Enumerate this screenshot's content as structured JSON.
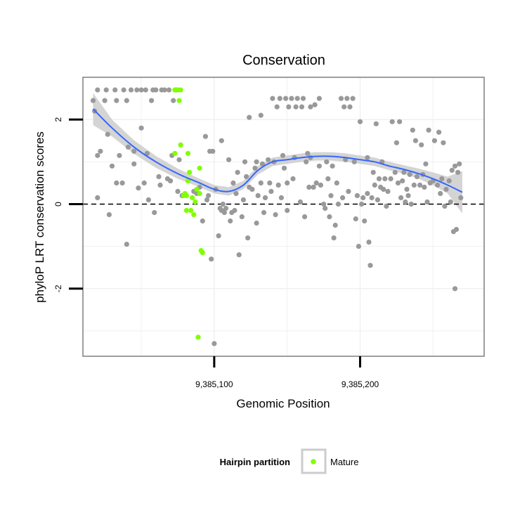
{
  "chart_data": {
    "type": "scatter",
    "title": "Conservation",
    "xlabel": "Genomic Position",
    "ylabel": "phyloP LRT conservation scores",
    "xlim": [
      9385010,
      9385285
    ],
    "ylim": [
      -3.6,
      3.0
    ],
    "x_ticks": [
      9385100,
      9385200
    ],
    "x_tick_labels": [
      "9,385,100",
      "9,385,200"
    ],
    "y_ticks": [
      -2,
      0,
      2
    ],
    "y_tick_labels": [
      "-2",
      "0",
      "2"
    ],
    "grid": true,
    "reference_line": {
      "y": 0,
      "style": "dashed"
    },
    "legend": {
      "title": "Hairpin partition",
      "entries": [
        "Mature"
      ],
      "position": "bottom"
    },
    "colors": {
      "other": "#999999",
      "Mature": "#7fff00",
      "smooth": "#3366ff",
      "band": "#cccccc"
    },
    "series": [
      {
        "group": "other",
        "points": [
          [
            9385017,
            2.45
          ],
          [
            9385020,
            2.7
          ],
          [
            9385018,
            2.2
          ],
          [
            9385020,
            1.15
          ],
          [
            9385022,
            1.25
          ],
          [
            9385020,
            0.15
          ],
          [
            9385025,
            2.45
          ],
          [
            9385026,
            2.7
          ],
          [
            9385027,
            1.65
          ],
          [
            9385028,
            -0.25
          ],
          [
            9385030,
            0.9
          ],
          [
            9385032,
            2.7
          ],
          [
            9385033,
            2.45
          ],
          [
            9385035,
            1.15
          ],
          [
            9385033,
            0.5
          ],
          [
            9385037,
            0.5
          ],
          [
            9385038,
            2.7
          ],
          [
            9385040,
            2.45
          ],
          [
            9385040,
            -0.95
          ],
          [
            9385041,
            1.35
          ],
          [
            9385043,
            2.7
          ],
          [
            9385045,
            1.25
          ],
          [
            9385045,
            0.95
          ],
          [
            9385047,
            2.7
          ],
          [
            9385048,
            0.38
          ],
          [
            9385050,
            1.8
          ],
          [
            9385050,
            2.7
          ],
          [
            9385052,
            0.5
          ],
          [
            9385053,
            2.7
          ],
          [
            9385054,
            1.2
          ],
          [
            9385055,
            0.1
          ],
          [
            9385057,
            2.45
          ],
          [
            9385058,
            2.7
          ],
          [
            9385059,
            -0.2
          ],
          [
            9385060,
            2.7
          ],
          [
            9385062,
            0.65
          ],
          [
            9385063,
            0.45
          ],
          [
            9385064,
            2.7
          ],
          [
            9385066,
            2.7
          ],
          [
            9385068,
            0.6
          ],
          [
            9385069,
            2.7
          ],
          [
            9385070,
            0.55
          ],
          [
            9385071,
            1.15
          ],
          [
            9385072,
            2.45
          ],
          [
            9385074,
            2.7
          ],
          [
            9385075,
            0.3
          ],
          [
            9385076,
            1.05
          ],
          [
            9385078,
            0.2
          ],
          [
            9385086,
            0.3
          ],
          [
            9385088,
            0.25
          ],
          [
            9385090,
            0.4
          ],
          [
            9385092,
            -0.4
          ],
          [
            9385094,
            1.6
          ],
          [
            9385095,
            0.1
          ],
          [
            9385096,
            0.2
          ],
          [
            9385097,
            1.25
          ],
          [
            9385098,
            -1.3
          ],
          [
            9385099,
            1.25
          ],
          [
            9385100,
            -3.3
          ],
          [
            9385101,
            0.35
          ],
          [
            9385103,
            -0.75
          ],
          [
            9385104,
            -0.1
          ],
          [
            9385105,
            1.5
          ],
          [
            9385105,
            -0.15
          ],
          [
            9385106,
            0.0
          ],
          [
            9385107,
            -0.2
          ],
          [
            9385108,
            -0.1
          ],
          [
            9385110,
            1.05
          ],
          [
            9385111,
            -0.4
          ],
          [
            9385112,
            -0.2
          ],
          [
            9385113,
            0.5
          ],
          [
            9385114,
            -0.15
          ],
          [
            9385115,
            0.25
          ],
          [
            9385116,
            0.75
          ],
          [
            9385117,
            -1.2
          ],
          [
            9385119,
            -0.3
          ],
          [
            9385120,
            0.1
          ],
          [
            9385121,
            1.0
          ],
          [
            9385122,
            0.65
          ],
          [
            9385123,
            -0.8
          ],
          [
            9385124,
            2.05
          ],
          [
            9385124,
            0.4
          ],
          [
            9385126,
            0.35
          ],
          [
            9385128,
            0.85
          ],
          [
            9385129,
            -0.45
          ],
          [
            9385129,
            1.0
          ],
          [
            9385130,
            0.2
          ],
          [
            9385132,
            2.1
          ],
          [
            9385132,
            0.5
          ],
          [
            9385133,
            0.95
          ],
          [
            9385134,
            -0.2
          ],
          [
            9385135,
            0.15
          ],
          [
            9385137,
            1.05
          ],
          [
            9385138,
            0.5
          ],
          [
            9385139,
            0.3
          ],
          [
            9385140,
            2.5
          ],
          [
            9385141,
            1.0
          ],
          [
            9385142,
            -0.25
          ],
          [
            9385143,
            2.3
          ],
          [
            9385144,
            0.45
          ],
          [
            9385145,
            2.5
          ],
          [
            9385146,
            0.15
          ],
          [
            9385147,
            1.15
          ],
          [
            9385148,
            0.85
          ],
          [
            9385149,
            2.5
          ],
          [
            9385150,
            0.5
          ],
          [
            9385150,
            -0.15
          ],
          [
            9385151,
            2.3
          ],
          [
            9385153,
            2.5
          ],
          [
            9385154,
            0.6
          ],
          [
            9385155,
            1.1
          ],
          [
            9385156,
            2.3
          ],
          [
            9385157,
            2.5
          ],
          [
            9385159,
            0.05
          ],
          [
            9385160,
            2.3
          ],
          [
            9385161,
            2.5
          ],
          [
            9385162,
            -0.3
          ],
          [
            9385163,
            1.0
          ],
          [
            9385164,
            1.2
          ],
          [
            9385165,
            0.4
          ],
          [
            9385166,
            2.3
          ],
          [
            9385166,
            1.1
          ],
          [
            9385168,
            0.4
          ],
          [
            9385169,
            2.35
          ],
          [
            9385170,
            0.5
          ],
          [
            9385172,
            0.9
          ],
          [
            9385172,
            2.5
          ],
          [
            9385173,
            0.45
          ],
          [
            9385175,
            0.0
          ],
          [
            9385176,
            -0.1
          ],
          [
            9385177,
            1.0
          ],
          [
            9385178,
            0.6
          ],
          [
            9385179,
            -0.3
          ],
          [
            9385180,
            0.2
          ],
          [
            9385181,
            0.9
          ],
          [
            9385182,
            -0.8
          ],
          [
            9385183,
            -0.5
          ],
          [
            9385184,
            0.5
          ],
          [
            9385185,
            0.0
          ],
          [
            9385187,
            2.5
          ],
          [
            9385188,
            0.15
          ],
          [
            9385189,
            2.3
          ],
          [
            9385190,
            1.05
          ],
          [
            9385191,
            2.5
          ],
          [
            9385192,
            0.3
          ],
          [
            9385193,
            2.3
          ],
          [
            9385195,
            2.5
          ],
          [
            9385196,
            1.0
          ],
          [
            9385197,
            -0.35
          ],
          [
            9385198,
            0.2
          ],
          [
            9385199,
            -1.0
          ],
          [
            9385200,
            1.95
          ],
          [
            9385201,
            0.0
          ],
          [
            9385202,
            0.15
          ],
          [
            9385203,
            -0.4
          ],
          [
            9385205,
            0.25
          ],
          [
            9385205,
            1.1
          ],
          [
            9385206,
            -0.9
          ],
          [
            9385207,
            -1.45
          ],
          [
            9385208,
            0.15
          ],
          [
            9385209,
            0.75
          ],
          [
            9385210,
            0.45
          ],
          [
            9385211,
            1.9
          ],
          [
            9385212,
            0.1
          ],
          [
            9385213,
            0.6
          ],
          [
            9385214,
            0.4
          ],
          [
            9385215,
            1.0
          ],
          [
            9385216,
            0.35
          ],
          [
            9385217,
            0.6
          ],
          [
            9385218,
            -0.05
          ],
          [
            9385219,
            0.3
          ],
          [
            9385221,
            0.6
          ],
          [
            9385222,
            1.95
          ],
          [
            9385224,
            0.75
          ],
          [
            9385225,
            1.45
          ],
          [
            9385226,
            0.5
          ],
          [
            9385227,
            1.95
          ],
          [
            9385228,
            0.15
          ],
          [
            9385229,
            0.55
          ],
          [
            9385230,
            0.75
          ],
          [
            9385231,
            0.05
          ],
          [
            9385232,
            0.35
          ],
          [
            9385233,
            0.2
          ],
          [
            9385234,
            0.7
          ],
          [
            9385235,
            0.0
          ],
          [
            9385236,
            1.75
          ],
          [
            9385237,
            0.45
          ],
          [
            9385238,
            1.5
          ],
          [
            9385239,
            0.65
          ],
          [
            9385241,
            0.45
          ],
          [
            9385242,
            1.4
          ],
          [
            9385243,
            0.7
          ],
          [
            9385244,
            0.4
          ],
          [
            9385245,
            0.95
          ],
          [
            9385246,
            0.05
          ],
          [
            9385247,
            1.75
          ],
          [
            9385248,
            0.5
          ],
          [
            9385250,
            0.55
          ],
          [
            9385251,
            1.5
          ],
          [
            9385253,
            0.45
          ],
          [
            9385254,
            1.7
          ],
          [
            9385255,
            0.25
          ],
          [
            9385256,
            0.6
          ],
          [
            9385257,
            1.45
          ],
          [
            9385258,
            -0.05
          ],
          [
            9385259,
            0.35
          ],
          [
            9385261,
            0.55
          ],
          [
            9385262,
            0.05
          ],
          [
            9385263,
            0.8
          ],
          [
            9385264,
            -0.65
          ],
          [
            9385265,
            0.9
          ],
          [
            9385265,
            -2.0
          ],
          [
            9385266,
            -0.6
          ],
          [
            9385267,
            0.75
          ],
          [
            9385268,
            0.95
          ],
          [
            9385269,
            0.15
          ]
        ]
      },
      {
        "group": "Mature",
        "points": [
          [
            9385073,
            2.7
          ],
          [
            9385075,
            2.7
          ],
          [
            9385076,
            2.45
          ],
          [
            9385077,
            2.7
          ],
          [
            9385073,
            1.2
          ],
          [
            9385077,
            1.4
          ],
          [
            9385082,
            1.2
          ],
          [
            9385079,
            0.2
          ],
          [
            9385080,
            0.25
          ],
          [
            9385081,
            0.2
          ],
          [
            9385082,
            0.55
          ],
          [
            9385083,
            0.75
          ],
          [
            9385081,
            -0.15
          ],
          [
            9385084,
            -0.15
          ],
          [
            9385086,
            -0.25
          ],
          [
            9385085,
            0.15
          ],
          [
            9385087,
            0.05
          ],
          [
            9385088,
            0.35
          ],
          [
            9385090,
            0.85
          ],
          [
            9385090,
            0.25
          ],
          [
            9385089,
            -3.15
          ],
          [
            9385091,
            -1.1
          ],
          [
            9385092,
            -1.15
          ]
        ]
      }
    ],
    "smooth": {
      "method": "loess",
      "x": [
        9385017,
        9385030,
        9385045,
        9385060,
        9385075,
        9385090,
        9385100,
        9385110,
        9385120,
        9385130,
        9385140,
        9385150,
        9385160,
        9385170,
        9385180,
        9385190,
        9385200,
        9385210,
        9385220,
        9385230,
        9385240,
        9385250,
        9385260,
        9385270
      ],
      "y": [
        2.25,
        1.8,
        1.35,
        1.0,
        0.72,
        0.5,
        0.35,
        0.3,
        0.45,
        0.8,
        1.0,
        1.05,
        1.1,
        1.13,
        1.13,
        1.1,
        1.05,
        1.0,
        0.9,
        0.82,
        0.72,
        0.6,
        0.45,
        0.28
      ],
      "se": [
        0.38,
        0.2,
        0.16,
        0.14,
        0.12,
        0.1,
        0.1,
        0.1,
        0.1,
        0.1,
        0.1,
        0.1,
        0.1,
        0.1,
        0.1,
        0.1,
        0.1,
        0.1,
        0.1,
        0.1,
        0.12,
        0.15,
        0.2,
        0.5
      ]
    }
  }
}
